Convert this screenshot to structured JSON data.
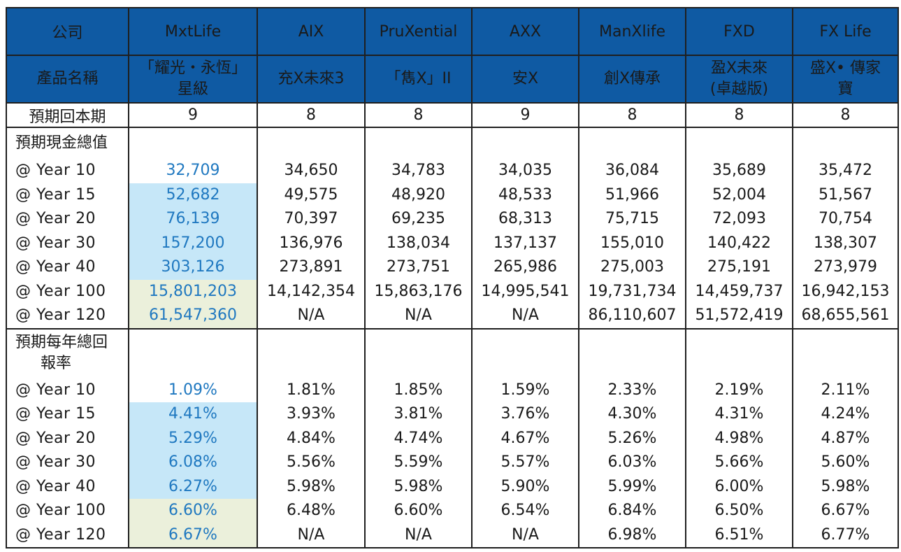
{
  "header": {
    "company_label": "公司",
    "product_label": "產品名稱",
    "companies": [
      "MxtLife",
      "AIX",
      "PruXential",
      "AXX",
      "ManXlife",
      "FXD",
      "FX Life"
    ],
    "products": [
      [
        "「耀光・永恆」",
        "星級"
      ],
      [
        "充X未來3",
        ""
      ],
      [
        "「雋X」II",
        ""
      ],
      [
        "安X",
        ""
      ],
      [
        "創X傳承",
        ""
      ],
      [
        "盈X未來",
        "(卓越版)"
      ],
      [
        "盛X• 傳家",
        "寶"
      ]
    ]
  },
  "breakeven": {
    "label": "預期回本期",
    "values": [
      "9",
      "8",
      "8",
      "9",
      "8",
      "8",
      "8"
    ]
  },
  "cash_value": {
    "title": "預期現金總值",
    "rows": [
      {
        "label": "@ Year 10",
        "values": [
          "32,709",
          "34,650",
          "34,783",
          "34,035",
          "36,084",
          "35,689",
          "35,472"
        ]
      },
      {
        "label": "@ Year 15",
        "values": [
          "52,682",
          "49,575",
          "48,920",
          "48,533",
          "51,966",
          "52,004",
          "51,567"
        ]
      },
      {
        "label": "@ Year 20",
        "values": [
          "76,139",
          "70,397",
          "69,235",
          "68,313",
          "75,715",
          "72,093",
          "70,754"
        ]
      },
      {
        "label": "@ Year 30",
        "values": [
          "157,200",
          "136,976",
          "138,034",
          "137,137",
          "155,010",
          "140,422",
          "138,307"
        ]
      },
      {
        "label": "@ Year 40",
        "values": [
          "303,126",
          "273,891",
          "273,751",
          "265,986",
          "275,003",
          "275,191",
          "273,979"
        ]
      },
      {
        "label": "@ Year 100",
        "values": [
          "15,801,203",
          "14,142,354",
          "15,863,176",
          "14,995,541",
          "19,731,734",
          "14,459,737",
          "16,942,153"
        ]
      },
      {
        "label": "@ Year 120",
        "values": [
          "61,547,360",
          "N/A",
          "N/A",
          "N/A",
          "86,110,607",
          "51,572,419",
          "68,655,561"
        ]
      }
    ]
  },
  "annual_return": {
    "title_line1": "預期每年總回",
    "title_line2": "報率",
    "rows": [
      {
        "label": "@ Year 10",
        "values": [
          "1.09%",
          "1.81%",
          "1.85%",
          "1.59%",
          "2.33%",
          "2.19%",
          "2.11%"
        ]
      },
      {
        "label": "@ Year 15",
        "values": [
          "4.41%",
          "3.93%",
          "3.81%",
          "3.76%",
          "4.30%",
          "4.31%",
          "4.24%"
        ]
      },
      {
        "label": "@ Year 20",
        "values": [
          "5.29%",
          "4.84%",
          "4.74%",
          "4.67%",
          "5.26%",
          "4.98%",
          "4.87%"
        ]
      },
      {
        "label": "@ Year 30",
        "values": [
          "6.08%",
          "5.56%",
          "5.59%",
          "5.57%",
          "6.03%",
          "5.66%",
          "5.60%"
        ]
      },
      {
        "label": "@ Year 40",
        "values": [
          "6.27%",
          "5.98%",
          "5.98%",
          "5.90%",
          "5.99%",
          "6.00%",
          "5.98%"
        ]
      },
      {
        "label": "@ Year 100",
        "values": [
          "6.60%",
          "6.48%",
          "6.60%",
          "6.54%",
          "6.84%",
          "6.50%",
          "6.67%"
        ]
      },
      {
        "label": "@ Year 120",
        "values": [
          "6.67%",
          "N/A",
          "N/A",
          "N/A",
          "6.98%",
          "6.51%",
          "6.77%"
        ]
      }
    ]
  },
  "colors": {
    "header_bg": "#0f5aa3",
    "highlight_blue": "#c6e7f8",
    "highlight_green": "#ebf0db",
    "first_col_text": "#1f78c0"
  }
}
